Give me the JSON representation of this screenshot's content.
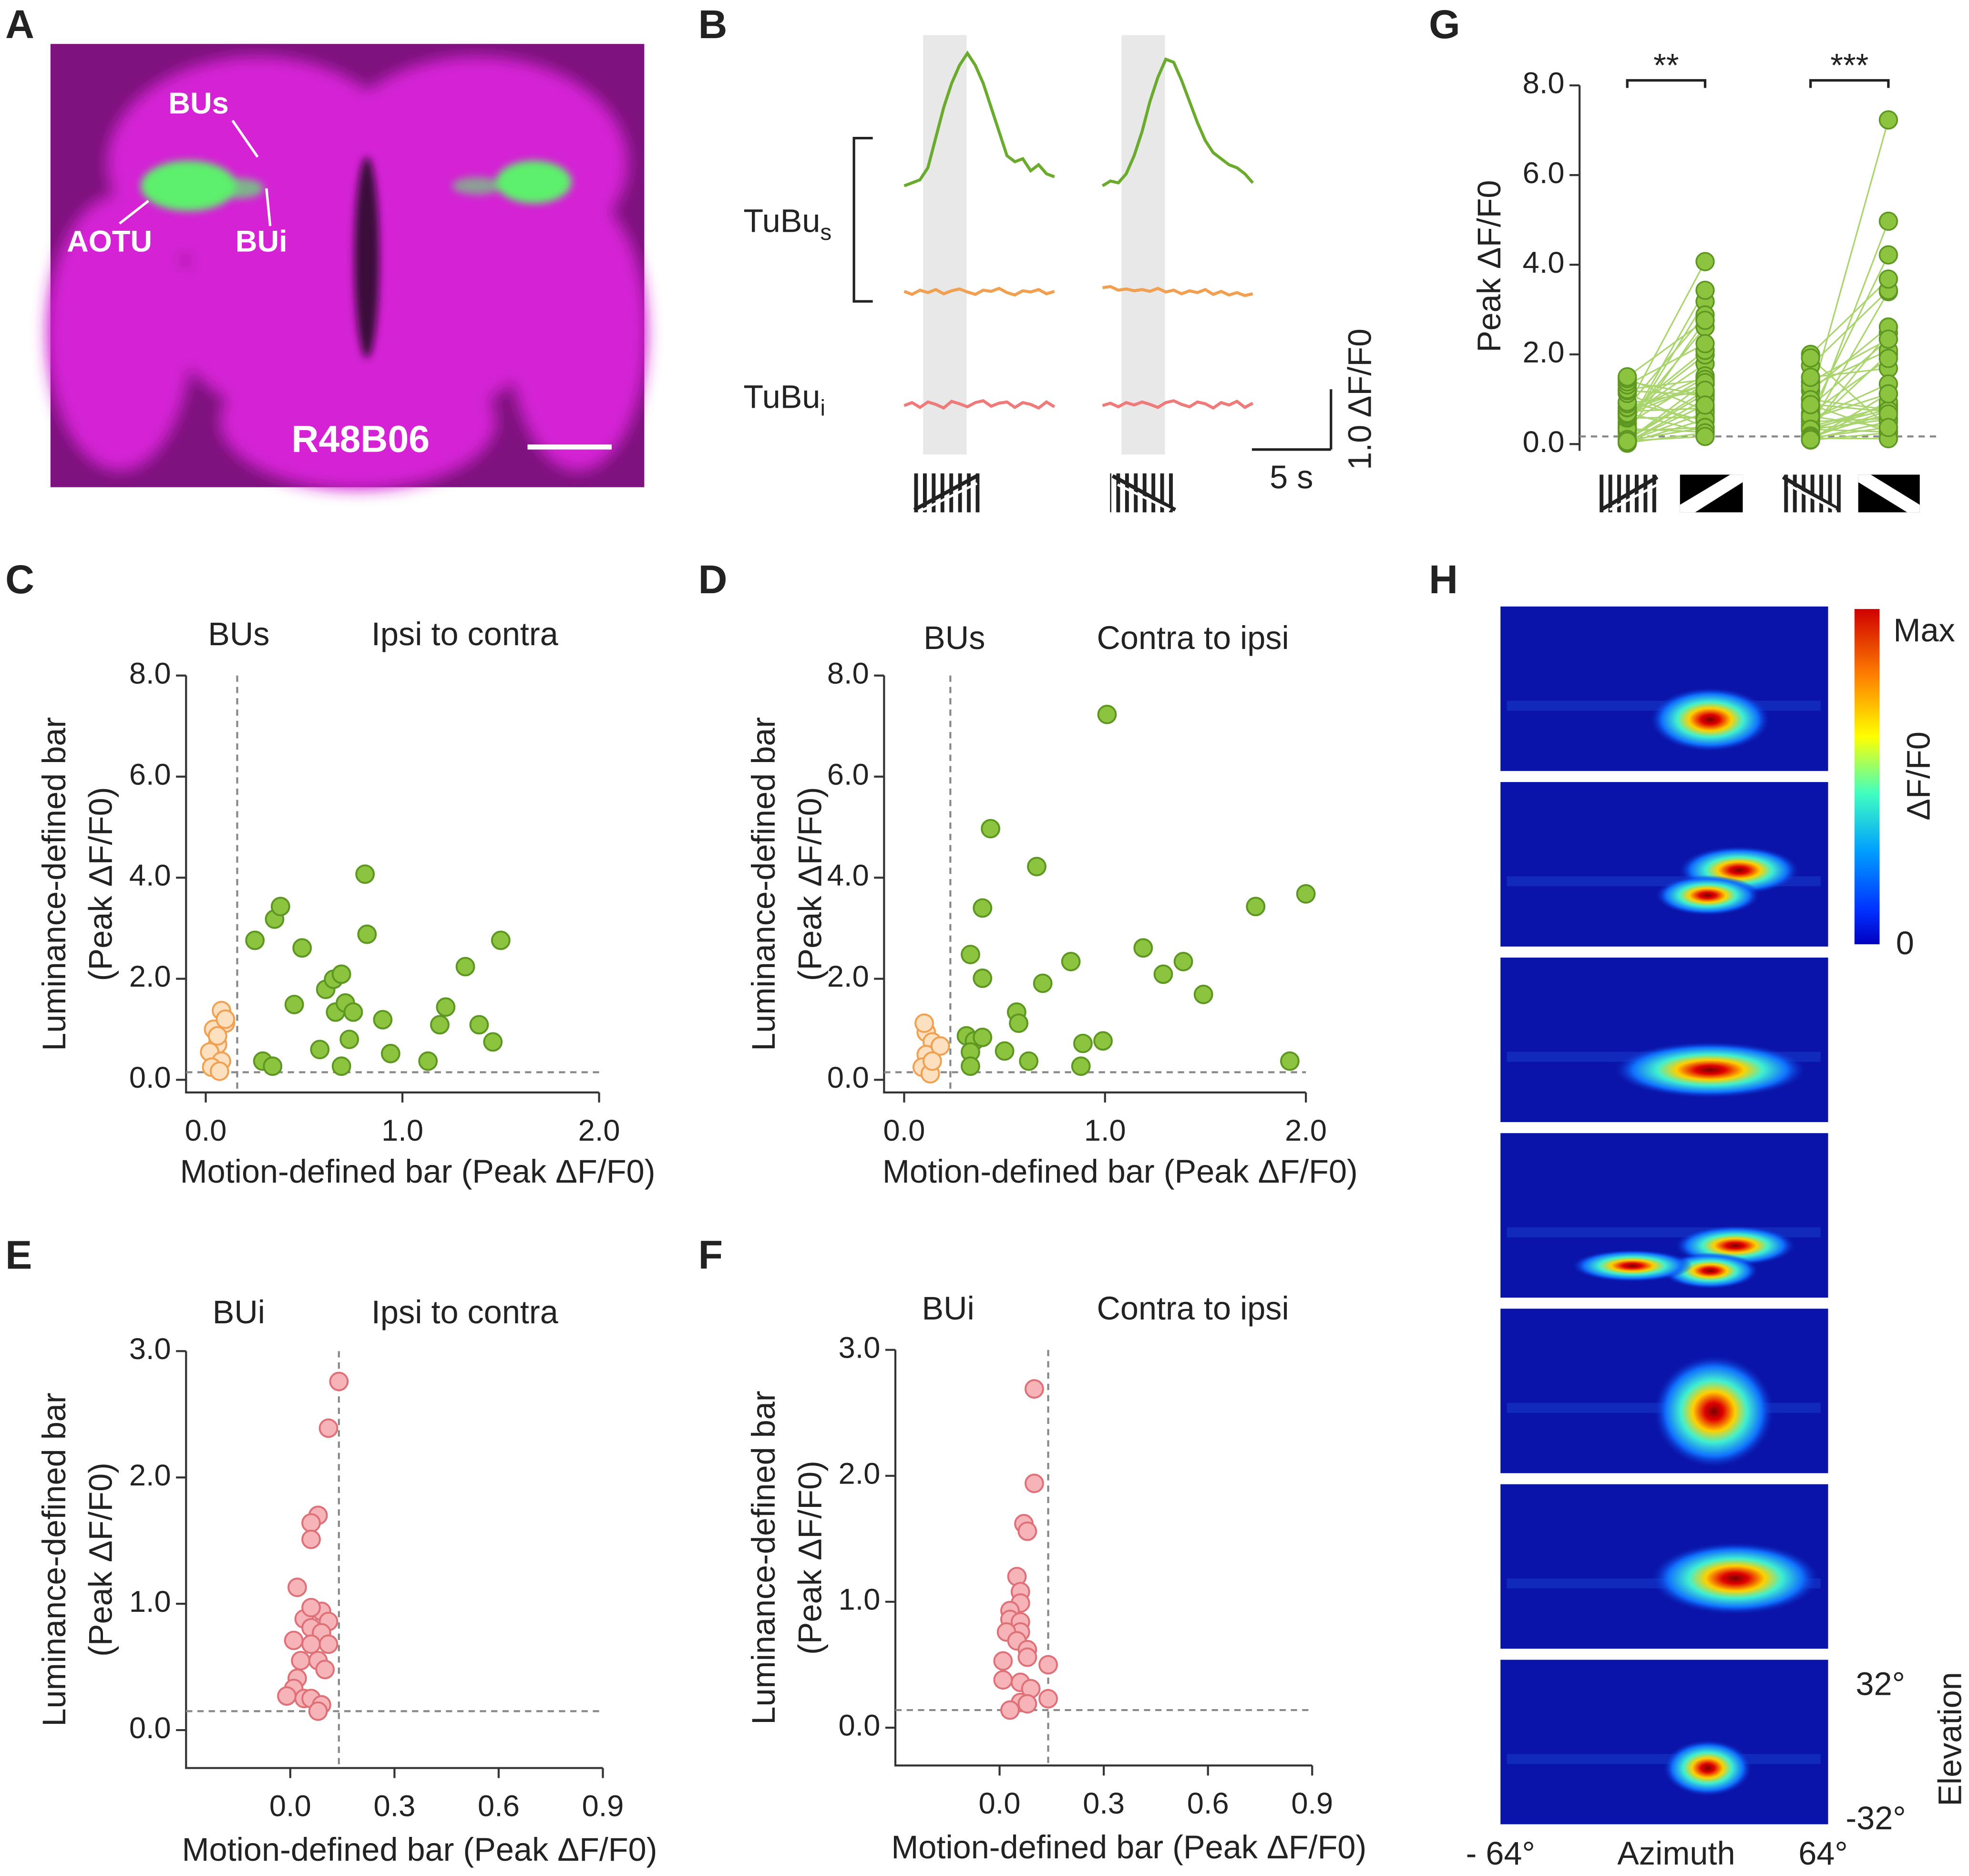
{
  "panel_labels": [
    "A",
    "B",
    "C",
    "D",
    "E",
    "F",
    "G",
    "H"
  ],
  "panel_a": {
    "labels": [
      "BUs",
      "AOTU",
      "BUi"
    ],
    "genotype": "R48B06"
  },
  "panel_h": {
    "colorbar": {
      "max": "Max",
      "min": 0,
      "label": "ΔF/F0"
    },
    "elevation": {
      "top": "32°",
      "bottom": "-32°",
      "label": "Elevation"
    },
    "azimuth": {
      "left": "- 64°",
      "right": "64°",
      "label": "Azimuth"
    }
  },
  "chart_data": [
    {
      "type": "trace",
      "x": [
        0,
        0.5,
        1,
        1.5,
        2,
        2.5,
        3,
        3.5,
        4,
        4.5,
        5,
        5.5,
        6,
        6.5,
        7,
        7.5,
        8,
        8.5,
        9,
        9.5
      ],
      "stimulus": [
        1.2,
        3.95
      ],
      "row_labels": [
        {
          "text": "TuBu",
          "sub": "s"
        },
        {
          "text": "TuBu",
          "sub": "i"
        }
      ],
      "scale_x": {
        "value": 5,
        "label": "5 s"
      },
      "scale_y": {
        "value": 1.0,
        "label": "1.0 ΔF/F0"
      },
      "series": [
        {
          "color": "#6aab2e",
          "values": [
            0,
            0.05,
            0.1,
            0.3,
            0.8,
            1.3,
            1.7,
            2.0,
            2.2,
            2.0,
            1.7,
            1.3,
            0.9,
            0.5,
            0.4,
            0.45,
            0.25,
            0.35,
            0.2,
            0.15
          ]
        },
        {
          "color": "#f0a050",
          "values": [
            0.02,
            -0.03,
            0.04,
            0,
            0.05,
            -0.02,
            0.03,
            0.06,
            0.01,
            -0.03,
            0.04,
            0.02,
            0.07,
            0,
            -0.04,
            0.03,
            0.01,
            0.05,
            -0.02,
            0.02
          ]
        },
        {
          "color": "#ee7a7a",
          "values": [
            0,
            0.05,
            -0.03,
            0.06,
            0.02,
            -0.04,
            0.07,
            0.03,
            -0.02,
            0.05,
            0.08,
            -0.01,
            0.04,
            0.06,
            -0.03,
            0.05,
            0.02,
            -0.04,
            0.06,
            -0.02
          ]
        },
        {
          "color": "#6aab2e",
          "values": [
            0,
            0.08,
            0.05,
            0.2,
            0.5,
            0.9,
            1.4,
            1.8,
            2.1,
            2.05,
            1.75,
            1.4,
            1.05,
            0.75,
            0.55,
            0.45,
            0.35,
            0.3,
            0.2,
            0.05
          ]
        },
        {
          "color": "#f0a050",
          "values": [
            0.08,
            0.1,
            0.04,
            0.06,
            0.03,
            0.05,
            0.02,
            0.07,
            0.01,
            0.04,
            -0.02,
            0.03,
            0,
            0.05,
            -0.03,
            0.02,
            -0.04,
            0,
            -0.05,
            -0.02
          ]
        },
        {
          "color": "#ee7a7a",
          "values": [
            0,
            0.04,
            -0.02,
            0.05,
            0.01,
            0.06,
            0.02,
            -0.03,
            0.05,
            0.08,
            0.02,
            -0.02,
            0.06,
            0.03,
            -0.04,
            0.05,
            0.01,
            0.07,
            -0.03,
            0.04
          ]
        }
      ]
    },
    {
      "type": "scatter",
      "annotations": [
        "BUs",
        "Ipsi to contra"
      ],
      "xlabel": "Motion-defined bar (Peak ΔF/F0)",
      "ylabel": [
        "Luminance-defined bar",
        "(Peak ΔF/F0)"
      ],
      "xlim": [
        -0.1,
        2.0
      ],
      "ylim": [
        -0.25,
        8.0
      ],
      "xticks": [
        {
          "value": 0,
          "label": "0.0"
        },
        {
          "value": 1,
          "label": "1.0"
        },
        {
          "value": 2,
          "label": "2.0"
        }
      ],
      "yticks": [
        {
          "value": 0,
          "label": "0.0"
        },
        {
          "value": 2,
          "label": "2.0"
        },
        {
          "value": 4,
          "label": "4.0"
        },
        {
          "value": 6,
          "label": "6.0"
        },
        {
          "value": 8,
          "label": "8.0"
        }
      ],
      "threshold": {
        "x": 0.16,
        "y": 0.15
      },
      "series": [
        {
          "color": "#8cc43f",
          "edge": "#5d9620",
          "x": [
            0.25,
            0.35,
            0.38,
            0.49,
            0.45,
            0.29,
            0.34,
            0.58,
            0.61,
            0.65,
            0.69,
            0.66,
            0.71,
            0.75,
            0.73,
            0.69,
            0.81,
            0.82,
            0.9,
            0.94,
            1.13,
            1.19,
            1.22,
            1.32,
            1.39,
            1.46,
            1.5
          ],
          "values": [
            2.76,
            3.18,
            3.43,
            2.61,
            1.49,
            0.37,
            0.27,
            0.6,
            1.79,
            1.99,
            2.09,
            1.34,
            1.52,
            1.34,
            0.8,
            0.27,
            4.07,
            2.88,
            1.19,
            0.52,
            0.37,
            1.09,
            1.44,
            2.24,
            1.09,
            0.75,
            2.76
          ]
        },
        {
          "color": "#fde0bf",
          "edge": "#f0a050",
          "x": [
            0.08,
            0.1,
            0.04,
            0.06,
            0.02,
            0.08,
            0.03,
            0.07,
            0.1,
            0.06
          ],
          "values": [
            1.37,
            1.12,
            1.0,
            0.7,
            0.55,
            0.37,
            0.25,
            0.17,
            1.2,
            0.87
          ]
        }
      ]
    },
    {
      "type": "scatter",
      "annotations": [
        "BUs",
        "Contra to ipsi"
      ],
      "xlabel": "Motion-defined bar (Peak ΔF/F0)",
      "ylabel": [
        "Luminance-defined bar",
        "(Peak ΔF/F0)"
      ],
      "xlim": [
        -0.1,
        2.0
      ],
      "ylim": [
        -0.25,
        8.0
      ],
      "xticks": [
        {
          "value": 0,
          "label": "0.0"
        },
        {
          "value": 1,
          "label": "1.0"
        },
        {
          "value": 2,
          "label": "2.0"
        }
      ],
      "yticks": [
        {
          "value": 0,
          "label": "0.0"
        },
        {
          "value": 2,
          "label": "2.0"
        },
        {
          "value": 4,
          "label": "4.0"
        },
        {
          "value": 6,
          "label": "6.0"
        },
        {
          "value": 8,
          "label": "8.0"
        }
      ],
      "threshold": {
        "x": 0.23,
        "y": 0.15
      },
      "series": [
        {
          "color": "#8cc43f",
          "edge": "#5d9620",
          "x": [
            1.01,
            0.43,
            0.66,
            0.39,
            1.75,
            2.0,
            0.33,
            0.39,
            1.19,
            1.39,
            1.29,
            1.49,
            0.83,
            0.69,
            0.56,
            0.57,
            0.31,
            0.35,
            0.39,
            0.33,
            0.5,
            0.62,
            0.33,
            0.89,
            0.99,
            0.88,
            1.92
          ],
          "values": [
            7.23,
            4.97,
            4.22,
            3.4,
            3.43,
            3.68,
            2.48,
            2.01,
            2.61,
            2.34,
            2.09,
            1.69,
            2.34,
            1.91,
            1.34,
            1.12,
            0.87,
            0.77,
            0.84,
            0.55,
            0.57,
            0.37,
            0.27,
            0.72,
            0.77,
            0.27,
            0.37
          ]
        },
        {
          "color": "#fde0bf",
          "edge": "#f0a050",
          "x": [
            0.11,
            0.14,
            0.11,
            0.18,
            0.09,
            0.13,
            0.14,
            0.1
          ],
          "values": [
            0.94,
            0.75,
            0.5,
            0.67,
            0.25,
            0.12,
            0.37,
            1.12
          ]
        }
      ]
    },
    {
      "type": "scatter",
      "annotations": [
        "BUi",
        "Ipsi to contra"
      ],
      "xlabel": "Motion-defined bar (Peak ΔF/F0)",
      "ylabel": [
        "Luminance-defined bar",
        "(Peak ΔF/F0)"
      ],
      "xlim": [
        -0.3,
        0.9
      ],
      "ylim": [
        -0.3,
        3.0
      ],
      "xticks": [
        {
          "value": 0,
          "label": "0.0"
        },
        0.3,
        0.6,
        0.9
      ],
      "yticks": [
        {
          "value": 0,
          "label": "0.0"
        },
        {
          "value": 1,
          "label": "1.0"
        },
        {
          "value": 2,
          "label": "2.0"
        },
        {
          "value": 3,
          "label": "3.0"
        }
      ],
      "threshold": {
        "x": 0.14,
        "y": 0.15
      },
      "series": [
        {
          "color": "#f7b4b8",
          "edge": "#e07078",
          "x": [
            0.14,
            0.11,
            0.08,
            0.06,
            0.06,
            0.02,
            0.09,
            0.04,
            0.11,
            0.06,
            0.09,
            0.01,
            0.06,
            0.11,
            0.03,
            0.08,
            0.1,
            0.02,
            0.01,
            -0.01,
            0.04,
            0.06,
            0.09,
            0.08,
            0.06
          ],
          "values": [
            2.76,
            2.39,
            1.7,
            1.64,
            1.51,
            1.13,
            0.94,
            0.88,
            0.86,
            0.81,
            0.77,
            0.71,
            0.68,
            0.68,
            0.55,
            0.55,
            0.48,
            0.41,
            0.33,
            0.27,
            0.25,
            0.25,
            0.2,
            0.15,
            0.97
          ]
        }
      ]
    },
    {
      "type": "scatter",
      "annotations": [
        "BUi",
        "Contra to ipsi"
      ],
      "xlabel": "Motion-defined bar (Peak ΔF/F0)",
      "ylabel": [
        "Luminance-defined bar",
        "(Peak ΔF/F0)"
      ],
      "xlim": [
        -0.3,
        0.9
      ],
      "ylim": [
        -0.3,
        3.0
      ],
      "xticks": [
        {
          "value": 0,
          "label": "0.0"
        },
        0.3,
        0.6,
        0.9
      ],
      "yticks": [
        {
          "value": 0,
          "label": "0.0"
        },
        {
          "value": 1,
          "label": "1.0"
        },
        {
          "value": 2,
          "label": "2.0"
        },
        {
          "value": 3,
          "label": "3.0"
        }
      ],
      "threshold": {
        "x": 0.14,
        "y": 0.14
      },
      "series": [
        {
          "color": "#f7b4b8",
          "edge": "#e07078",
          "x": [
            0.1,
            0.1,
            0.07,
            0.08,
            0.05,
            0.06,
            0.06,
            0.03,
            0.03,
            0.06,
            0.06,
            0.02,
            0.05,
            0.08,
            0.01,
            0.08,
            0.14,
            0.01,
            0.06,
            0.09,
            0.14,
            0.06,
            0.03,
            0.08
          ],
          "values": [
            2.69,
            1.94,
            1.62,
            1.56,
            1.2,
            1.08,
            0.99,
            0.93,
            0.86,
            0.84,
            0.76,
            0.76,
            0.69,
            0.62,
            0.53,
            0.56,
            0.5,
            0.38,
            0.36,
            0.31,
            0.23,
            0.2,
            0.14,
            0.19
          ]
        }
      ]
    },
    {
      "type": "paired",
      "ylabel": "Peak ΔF/F0",
      "ylim": [
        -0.15,
        8.0
      ],
      "yticks": [
        {
          "value": 0,
          "label": "0.0"
        },
        {
          "value": 2,
          "label": "2.0"
        },
        {
          "value": 4,
          "label": "4.0"
        },
        {
          "value": 6,
          "label": "6.0"
        },
        {
          "value": 8,
          "label": "8.0"
        }
      ],
      "threshold": 0.17,
      "color": "#8cc43f",
      "edge": "#5d9620",
      "line_color": "#a9d46e",
      "pairs": [
        {
          "annotation": "**",
          "before": [
            0.25,
            0.35,
            0.38,
            0.49,
            0.45,
            0.29,
            0.34,
            0.58,
            0.61,
            0.65,
            0.69,
            0.66,
            0.71,
            0.75,
            0.73,
            0.69,
            0.81,
            0.82,
            0.9,
            0.94,
            1.13,
            1.19,
            1.22,
            1.32,
            1.39,
            1.46,
            1.5,
            0.08,
            0.1,
            0.04,
            0.06,
            0.02,
            0.08,
            0.03,
            0.07,
            0.1,
            0.06
          ],
          "after": [
            2.76,
            3.18,
            3.43,
            2.61,
            1.49,
            0.37,
            0.27,
            0.6,
            1.79,
            1.99,
            2.09,
            1.34,
            1.52,
            1.34,
            0.8,
            0.27,
            4.07,
            2.88,
            1.19,
            0.52,
            0.37,
            1.09,
            1.44,
            2.24,
            1.09,
            0.75,
            2.76,
            1.37,
            1.12,
            1.0,
            0.7,
            0.55,
            0.37,
            0.25,
            0.17,
            1.2,
            0.87
          ]
        },
        {
          "annotation": "***",
          "before": [
            1.01,
            0.43,
            0.66,
            0.39,
            1.75,
            2.0,
            0.33,
            0.39,
            1.19,
            1.39,
            1.29,
            1.49,
            0.83,
            0.69,
            0.56,
            0.57,
            0.31,
            0.35,
            0.39,
            0.33,
            0.5,
            0.62,
            0.33,
            0.89,
            0.99,
            0.88,
            1.92,
            0.11,
            0.14,
            0.11,
            0.18,
            0.09,
            0.13,
            0.14,
            0.1
          ],
          "after": [
            7.23,
            4.97,
            4.22,
            3.4,
            3.43,
            3.68,
            2.48,
            2.01,
            2.61,
            2.34,
            2.09,
            1.69,
            2.34,
            1.91,
            1.34,
            1.12,
            0.87,
            0.77,
            0.84,
            0.55,
            0.57,
            0.37,
            0.27,
            0.72,
            0.77,
            0.27,
            0.37,
            0.94,
            0.75,
            0.5,
            0.67,
            0.25,
            0.12,
            0.37,
            1.12
          ]
        }
      ]
    }
  ]
}
